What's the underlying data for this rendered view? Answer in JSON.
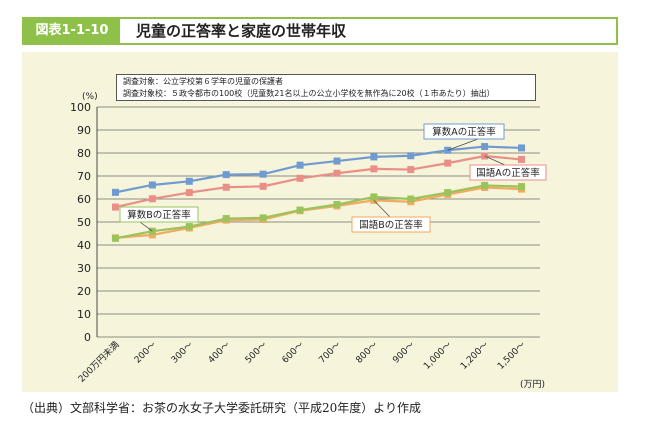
{
  "header": {
    "figure_number": "図表1-1-10",
    "title": "児童の正答率と家庭の世帯年収"
  },
  "note": {
    "line1": "調査対象：公立学校第６学年の児童の保護者",
    "line2": "調査対象校：５政令都市の100校（児童数21名以上の公立小学校を無作為に20校（１市あたり）抽出）"
  },
  "source": "（出典）文部科学省：お茶の水女子大学委託研究（平成20年度）より作成",
  "colors": {
    "title_accent": "#8fc04a",
    "panel_bg": "#f7f4dc",
    "math_a": "#6f9bd1",
    "japanese_a": "#ea8f88",
    "math_b": "#9ac45b",
    "japanese_b": "#f2aa60"
  },
  "chart_data": {
    "type": "line",
    "y_unit": "(%)",
    "x_unit": "(万円)",
    "ylim": [
      0,
      100
    ],
    "y_ticks": [
      "0",
      "10",
      "20",
      "30",
      "40",
      "50",
      "60",
      "70",
      "80",
      "90",
      "100"
    ],
    "grid": true,
    "categories": [
      "200万円未満",
      "200〜",
      "300〜",
      "400〜",
      "500〜",
      "600〜",
      "700〜",
      "800〜",
      "900〜",
      "1,000〜",
      "1,200〜",
      "1,500〜"
    ],
    "series": [
      {
        "name": "算数Aの正答率",
        "color": "#6f9bd1",
        "marker": "square",
        "values": [
          62.9,
          66.1,
          67.7,
          70.6,
          70.8,
          74.7,
          76.5,
          78.3,
          78.8,
          81.2,
          82.8,
          82.2
        ]
      },
      {
        "name": "国語Aの正答率",
        "color": "#ea8f88",
        "marker": "square",
        "values": [
          56.5,
          60.1,
          62.8,
          65.1,
          65.5,
          69.0,
          71.2,
          73.1,
          72.8,
          75.6,
          78.7,
          77.2
        ]
      },
      {
        "name": "算数Bの正答率",
        "color": "#9ac45b",
        "marker": "square",
        "values": [
          42.9,
          46.0,
          48.0,
          51.5,
          51.8,
          55.2,
          57.6,
          60.9,
          60.0,
          62.8,
          65.9,
          65.4
        ]
      },
      {
        "name": "国語Bの正答率",
        "color": "#f2aa60",
        "marker": "square",
        "values": [
          43.1,
          44.4,
          47.4,
          50.8,
          51.1,
          54.9,
          57.0,
          59.4,
          58.8,
          62.0,
          65.0,
          64.3
        ]
      }
    ]
  }
}
